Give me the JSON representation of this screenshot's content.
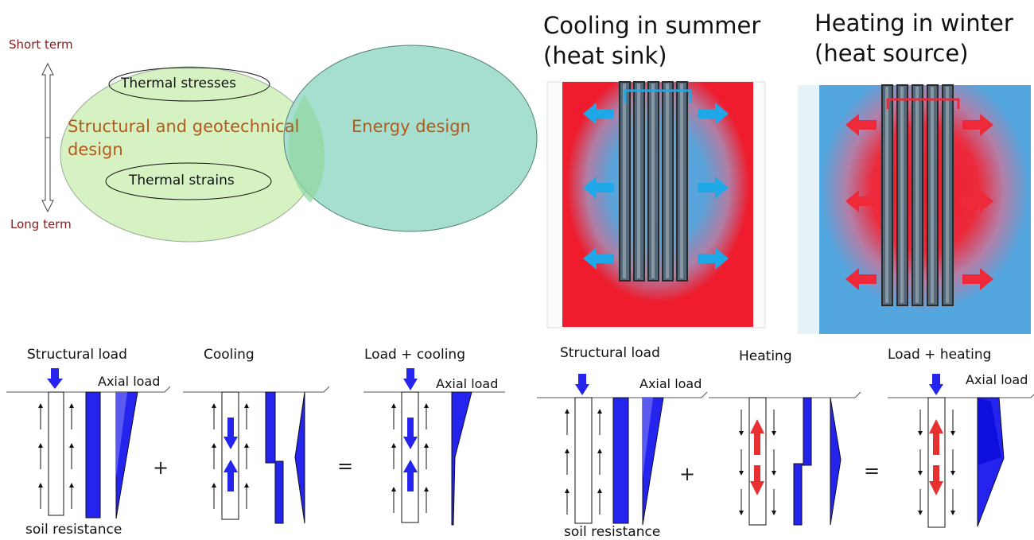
{
  "venn": {
    "short_term": "Short term",
    "long_term": "Long term",
    "structural": "Structural and geotechnical design",
    "energy": "Energy design",
    "stresses": "Thermal stresses",
    "strains": "Thermal strains"
  },
  "cooling": {
    "title": "Cooling in summer",
    "subtitle": "(heat sink)"
  },
  "heating": {
    "title": "Heating in winter",
    "subtitle": "(heat source)"
  },
  "panels": {
    "structural_load": "Structural load",
    "cooling": "Cooling",
    "load_cooling": "Load + cooling",
    "heating": "Heating",
    "load_heating": "Load + heating",
    "axial_load": "Axial load",
    "soil_resistance": "soil resistance",
    "plus": "+",
    "equals": "="
  },
  "colors": {
    "venn_structural": "#d6f2c2",
    "venn_energy": "#a6dfcf",
    "hot": "#ee1c2d",
    "cold": "#54a6df",
    "cold_arrow": "#1fa8e8",
    "hot_arrow": "#ee2a3a",
    "load_blue": "#2424ee"
  }
}
